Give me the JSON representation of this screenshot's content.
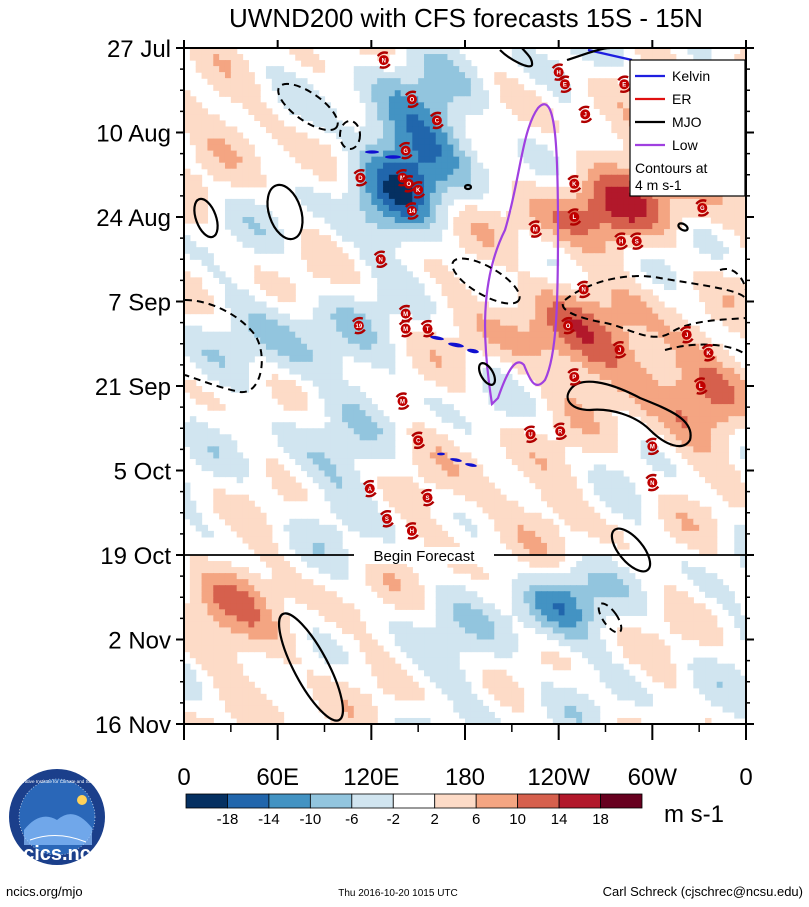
{
  "chart_data": {
    "type": "heatmap",
    "title": "UWND200 with CFS forecasts  15S - 15N",
    "variable": "UWND200",
    "latitude_band": "15S - 15N",
    "units": "m s-1",
    "x_tick_labels": [
      "0",
      "60E",
      "120E",
      "180",
      "120W",
      "60W",
      "0"
    ],
    "x_tick_longitudes": [
      0,
      60,
      120,
      180,
      240,
      300,
      360
    ],
    "xlim": [
      0,
      360
    ],
    "y_tick_labels": [
      "27 Jul",
      "10 Aug",
      "24 Aug",
      "7 Sep",
      "21 Sep",
      "5 Oct",
      "19 Oct",
      "2 Nov",
      "16 Nov"
    ],
    "y_tick_days": [
      0,
      14,
      28,
      42,
      56,
      70,
      84,
      98,
      112
    ],
    "ylim_days": [
      0,
      112
    ],
    "forecast_begin_day": 84,
    "forecast_label": "Begin Forecast",
    "colorbar": {
      "labels": [
        "-18",
        "-14",
        "-10",
        "-6",
        "-2",
        "2",
        "6",
        "10",
        "14",
        "18"
      ],
      "levels": [
        -18,
        -14,
        -10,
        -6,
        -2,
        2,
        6,
        10,
        14,
        18
      ],
      "colors": [
        "#053061",
        "#2166ac",
        "#4393c3",
        "#92c5de",
        "#d1e5f0",
        "#ffffff",
        "#fddbc7",
        "#f4a582",
        "#d6604d",
        "#b2182b",
        "#67001f"
      ]
    },
    "legend": {
      "entries": [
        {
          "name": "Kelvin",
          "color": "#1f1fe0"
        },
        {
          "name": "ER",
          "color": "#e01010"
        },
        {
          "name": "MJO",
          "color": "#000000"
        },
        {
          "name": "Low",
          "color": "#a040e0"
        }
      ],
      "note_line1": "Contours at",
      "note_line2": "4 m s-1"
    },
    "storms": [
      {
        "label": "N",
        "lon": 128,
        "day": 2
      },
      {
        "label": "H",
        "lon": 240,
        "day": 4
      },
      {
        "label": "E",
        "lon": 244,
        "day": 6
      },
      {
        "label": "E",
        "lon": 282,
        "day": 6
      },
      {
        "label": "O",
        "lon": 146,
        "day": 8.5
      },
      {
        "label": "J",
        "lon": 257,
        "day": 11
      },
      {
        "label": "C",
        "lon": 162,
        "day": 12
      },
      {
        "label": "G",
        "lon": 142,
        "day": 17
      },
      {
        "label": "D",
        "lon": 113,
        "day": 21.5
      },
      {
        "label": "M",
        "lon": 140,
        "day": 21.5
      },
      {
        "label": "O",
        "lon": 144,
        "day": 22.5
      },
      {
        "label": "K",
        "lon": 150,
        "day": 23.5
      },
      {
        "label": "K",
        "lon": 250,
        "day": 22.5
      },
      {
        "label": "14",
        "lon": 146,
        "day": 27
      },
      {
        "label": "L",
        "lon": 250,
        "day": 28
      },
      {
        "label": "M",
        "lon": 225,
        "day": 30
      },
      {
        "label": "G",
        "lon": 332,
        "day": 26.5
      },
      {
        "label": "H",
        "lon": 280,
        "day": 32
      },
      {
        "label": "S",
        "lon": 290,
        "day": 32
      },
      {
        "label": "N",
        "lon": 126,
        "day": 35
      },
      {
        "label": "N",
        "lon": 256,
        "day": 40
      },
      {
        "label": "M",
        "lon": 142,
        "day": 44
      },
      {
        "label": "19",
        "lon": 112,
        "day": 46
      },
      {
        "label": "M",
        "lon": 142,
        "day": 46.5
      },
      {
        "label": "T",
        "lon": 156,
        "day": 46.5
      },
      {
        "label": "O",
        "lon": 246,
        "day": 46
      },
      {
        "label": "J",
        "lon": 322,
        "day": 47.5
      },
      {
        "label": "J",
        "lon": 279,
        "day": 50
      },
      {
        "label": "K",
        "lon": 336,
        "day": 50.5
      },
      {
        "label": "P",
        "lon": 250,
        "day": 54.5
      },
      {
        "label": "L",
        "lon": 331,
        "day": 56
      },
      {
        "label": "M",
        "lon": 140,
        "day": 58.5
      },
      {
        "label": "U",
        "lon": 222,
        "day": 64
      },
      {
        "label": "R",
        "lon": 241,
        "day": 63.5
      },
      {
        "label": "C",
        "lon": 150,
        "day": 65
      },
      {
        "label": "M",
        "lon": 300,
        "day": 66
      },
      {
        "label": "N",
        "lon": 300,
        "day": 72
      },
      {
        "label": "A",
        "lon": 119,
        "day": 73
      },
      {
        "label": "S",
        "lon": 156,
        "day": 74.5
      },
      {
        "label": "S",
        "lon": 130,
        "day": 78
      },
      {
        "label": "H",
        "lon": 146,
        "day": 80
      }
    ],
    "annotation_bottom_left": "ncics.org/mjo",
    "annotation_bottom_center": "Thu 2016-10-20 1015 UTC",
    "annotation_bottom_right": "Carl Schreck (cjschrec@ncsu.edu)",
    "logo_text": "cics.nc",
    "logo_ring_text": "Cooperative Institute for Climate and Satellites"
  }
}
